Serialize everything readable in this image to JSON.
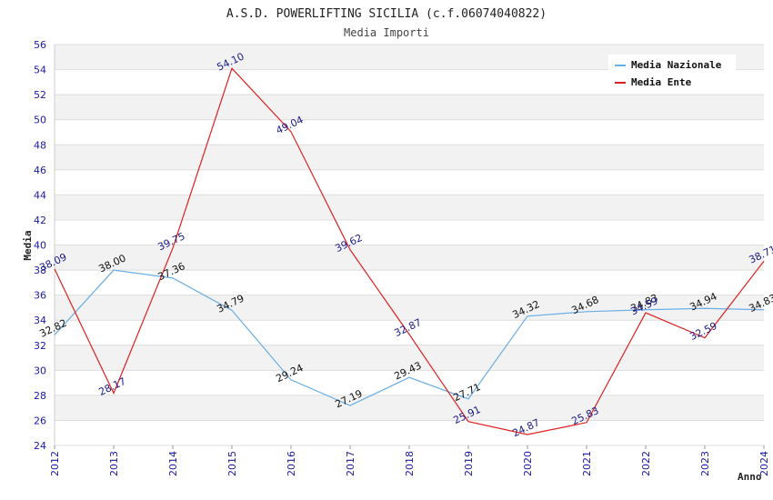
{
  "chart_data": {
    "type": "line",
    "title": "A.S.D. POWERLIFTING SICILIA (c.f.06074040822)",
    "subtitle": "Media Importi",
    "xlabel": "Anno",
    "ylabel": "Media",
    "ylim": [
      24,
      56
    ],
    "ytick_step": 2,
    "grid": true,
    "legend_position": "top-right",
    "categories": [
      "2012",
      "2013",
      "2014",
      "2015",
      "2016",
      "2017",
      "2018",
      "2019",
      "2020",
      "2021",
      "2022",
      "2023",
      "2024"
    ],
    "series": [
      {
        "name": "Media Nazionale",
        "color": "#6aaee6",
        "label_color": "#111111",
        "values": [
          32.82,
          38.0,
          37.36,
          34.79,
          29.24,
          27.19,
          29.43,
          27.71,
          34.32,
          34.68,
          34.83,
          34.94,
          34.83
        ],
        "labels": [
          "32.82",
          "38.00",
          "37.36",
          "34.79",
          "29.24",
          "27.19",
          "29.43",
          "27.71",
          "34.32",
          "34.68",
          "34.83",
          "34.94",
          "34.83"
        ]
      },
      {
        "name": "Media Ente",
        "color": "#e02020",
        "label_color": "#1a1a8a",
        "values": [
          38.09,
          28.17,
          39.75,
          54.1,
          49.04,
          39.62,
          32.87,
          25.91,
          24.87,
          25.83,
          34.59,
          32.59,
          38.71
        ],
        "labels": [
          "38.09",
          "28.17",
          "39.75",
          "54.10",
          "49.04",
          "39.62",
          "32.87",
          "25.91",
          "24.87",
          "25.83",
          "34.59",
          "32.59",
          "38.71"
        ]
      }
    ]
  }
}
